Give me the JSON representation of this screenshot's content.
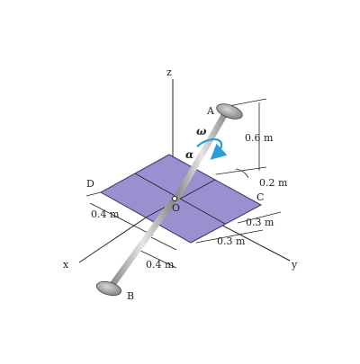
{
  "axes": {
    "x": "x",
    "y": "y",
    "z": "z"
  },
  "points": {
    "A": "A",
    "B": "B",
    "C": "C",
    "D": "D",
    "O": "O"
  },
  "symbols": {
    "omega": "ω",
    "alpha": "α"
  },
  "dimensions": {
    "height_a": "0.6 m",
    "offset_a": "0.2 m",
    "plate_half_d": "0.4 m",
    "plate_c_1": "0.3 m",
    "plate_c_2": "0.3 m",
    "rod_b": "0.4 m"
  },
  "colors": {
    "plate": "#9b8fcf",
    "plate_edge": "#3a3466",
    "rotation_arrow": "#2a9fd6",
    "rod": "#b8b8b8",
    "disk": "#9a9a9a"
  }
}
